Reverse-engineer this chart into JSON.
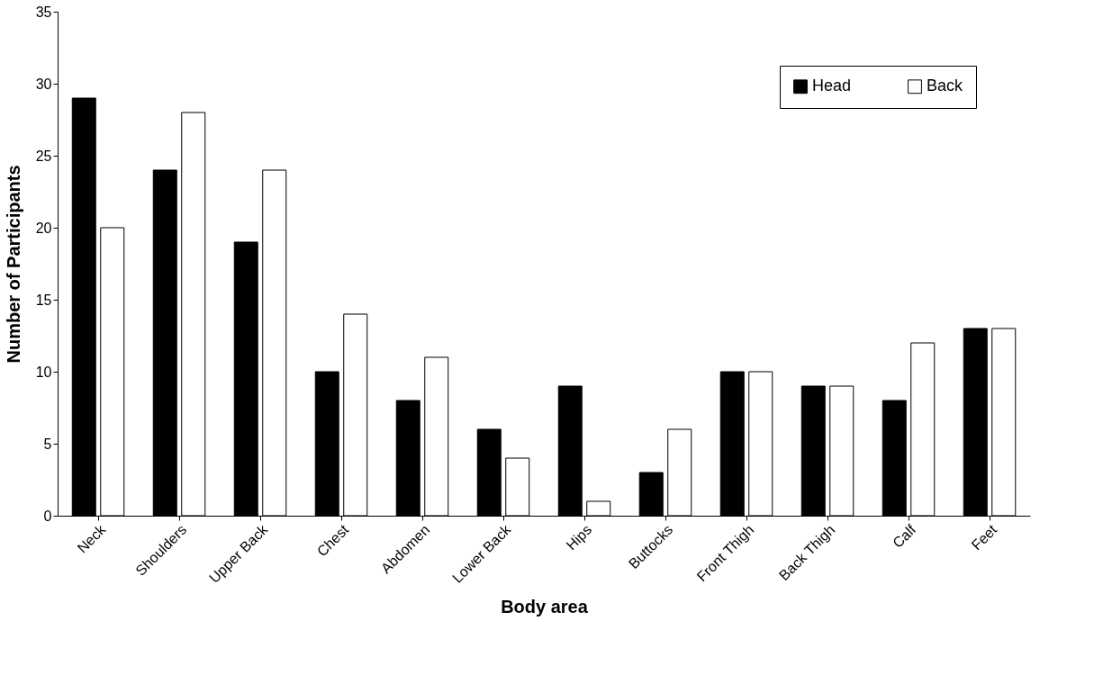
{
  "chart_data": {
    "type": "bar",
    "xlabel": "Body area",
    "ylabel": "Number of Participants",
    "categories": [
      "Neck",
      "Shoulders",
      "Upper Back",
      "Chest",
      "Abdomen",
      "Lower Back",
      "Hips",
      "Buttocks",
      "Front Thigh",
      "Back Thigh",
      "Calf",
      "Feet"
    ],
    "series": [
      {
        "name": "Head",
        "color": "#000000",
        "values": [
          29,
          24,
          19,
          10,
          8,
          6,
          9,
          3,
          10,
          9,
          8,
          13
        ]
      },
      {
        "name": "Back",
        "color": "#ffffff",
        "values": [
          20,
          28,
          24,
          14,
          11,
          4,
          1,
          6,
          10,
          9,
          12,
          13
        ]
      }
    ],
    "ylim": [
      0,
      35
    ],
    "yticks": [
      0,
      5,
      10,
      15,
      20,
      25,
      30,
      35
    ],
    "grid": false,
    "legend": "top right"
  }
}
